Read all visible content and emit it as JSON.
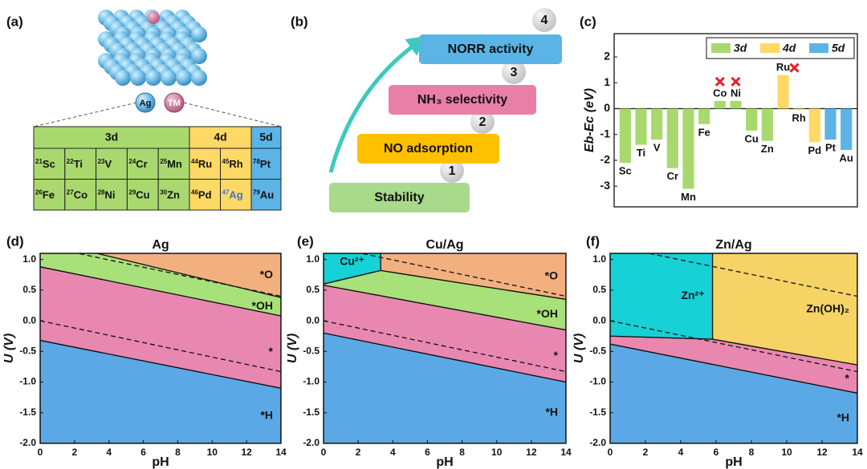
{
  "panel_labels": [
    "(a)",
    "(b)",
    "(c)",
    "(d)",
    "(e)",
    "(f)"
  ],
  "model": {
    "atoms": [
      "Ag",
      "TM"
    ]
  },
  "periodic_table": {
    "groups": [
      "3d",
      "4d",
      "5d"
    ],
    "rows": [
      [
        {
          "z": "21",
          "el": "Sc"
        },
        {
          "z": "22",
          "el": "Ti"
        },
        {
          "z": "23",
          "el": "V"
        },
        {
          "z": "24",
          "el": "Cr"
        },
        {
          "z": "25",
          "el": "Mn"
        },
        {
          "z": "44",
          "el": "Ru"
        },
        {
          "z": "45",
          "el": "Rh"
        },
        {
          "z": "78",
          "el": "Pt"
        }
      ],
      [
        {
          "z": "26",
          "el": "Fe"
        },
        {
          "z": "27",
          "el": "Co"
        },
        {
          "z": "28",
          "el": "Ni"
        },
        {
          "z": "29",
          "el": "Cu"
        },
        {
          "z": "30",
          "el": "Zn"
        },
        {
          "z": "46",
          "el": "Pd"
        },
        {
          "z": "47",
          "el": "Ag"
        },
        {
          "z": "79",
          "el": "Au"
        }
      ]
    ]
  },
  "workflow": {
    "steps": [
      {
        "number": "1",
        "label": "Stability"
      },
      {
        "number": "2",
        "label": "NO adsorption"
      },
      {
        "number": "3",
        "label": "NH₃ selectivity"
      },
      {
        "number": "4",
        "label": "NORR activity"
      }
    ]
  },
  "chart_data": [
    {
      "type": "bar",
      "ylabel": "Eb-Ec (eV)",
      "categories": [
        "Sc",
        "Ti",
        "V",
        "Cr",
        "Mn",
        "Fe",
        "Co",
        "Ni",
        "Cu",
        "Zn",
        "Ru",
        "Rh",
        "Pd",
        "Pt",
        "Au"
      ],
      "series": [
        {
          "name": "3d",
          "color": "#a9d96e",
          "values": [
            -2.1,
            -1.4,
            -1.2,
            -2.3,
            -3.1,
            -0.6,
            0.3,
            0.3,
            -0.85,
            -1.25,
            null,
            null,
            null,
            null,
            null
          ]
        },
        {
          "name": "4d",
          "color": "#ffd966",
          "values": [
            null,
            null,
            null,
            null,
            null,
            null,
            null,
            null,
            null,
            null,
            1.3,
            -0.05,
            -1.3,
            null,
            null
          ]
        },
        {
          "name": "5d",
          "color": "#5cb3e6",
          "values": [
            null,
            null,
            null,
            null,
            null,
            null,
            null,
            null,
            null,
            null,
            null,
            null,
            null,
            -1.2,
            -1.6
          ]
        }
      ],
      "marked_categories": [
        "Co",
        "Ni",
        "Ru"
      ],
      "ylim": [
        -3.8,
        2.9
      ],
      "yticks": [
        -3,
        -2,
        -1,
        0,
        1,
        2
      ],
      "legend": "top-right"
    },
    {
      "type": "pourbaix",
      "title": "Ag",
      "xlabel": "pH",
      "ylabel": "U (V)",
      "xlim": [
        0,
        14
      ],
      "ylim": [
        -2.0,
        1.1
      ],
      "xticks": [
        0,
        2,
        4,
        6,
        8,
        10,
        12,
        14
      ],
      "yticks": [
        {
          "value": -2.0,
          "label": "-2.0"
        },
        -1.5,
        {
          "value": -1.0,
          "label": "-1.0"
        },
        -0.5,
        {
          "value": 0,
          "label": "0.0"
        },
        0.5,
        {
          "value": 1.0,
          "label": "1.0"
        }
      ],
      "regions": [
        {
          "name": "*H",
          "color": "#5aa9e6",
          "x": [
            0,
            14,
            14,
            0
          ],
          "y": [
            -2.0,
            -2.0,
            -1.1,
            -0.32
          ]
        },
        {
          "name": "*",
          "color": "#e888b0",
          "x": [
            0,
            14,
            14,
            0
          ],
          "y": [
            -0.32,
            -1.1,
            0.08,
            0.88
          ]
        },
        {
          "name": "*OH",
          "color": "#a8e07a",
          "x": [
            0,
            14,
            14,
            3.3,
            0
          ],
          "y": [
            0.88,
            0.08,
            0.38,
            1.1,
            1.1
          ]
        },
        {
          "name": "*O",
          "color": "#f3b07f",
          "x": [
            3.3,
            14,
            14
          ],
          "y": [
            1.1,
            0.38,
            1.1
          ]
        }
      ],
      "dashed": [
        {
          "x": [
            0,
            14
          ],
          "y": [
            0,
            -0.83
          ]
        },
        {
          "x": [
            0,
            14
          ],
          "y": [
            1.23,
            0.4
          ]
        }
      ]
    },
    {
      "type": "pourbaix",
      "title": "Cu/Ag",
      "xlabel": "pH",
      "ylabel": "U (V)",
      "xlim": [
        0,
        14
      ],
      "ylim": [
        -2.0,
        1.1
      ],
      "xticks": [
        0,
        2,
        4,
        6,
        8,
        10,
        12,
        14
      ],
      "yticks": [
        {
          "value": -2.0,
          "label": "-2.0"
        },
        -1.5,
        {
          "value": -1.0,
          "label": "-1.0"
        },
        -0.5,
        {
          "value": 0,
          "label": "0.0"
        },
        0.5,
        {
          "value": 1.0,
          "label": "1.0"
        }
      ],
      "regions": [
        {
          "name": "*H",
          "color": "#5aa9e6",
          "x": [
            0,
            14,
            14,
            0
          ],
          "y": [
            -2.0,
            -2.0,
            -1.0,
            -0.2
          ]
        },
        {
          "name": "*",
          "color": "#e888b0",
          "x": [
            0,
            14,
            14,
            0
          ],
          "y": [
            -0.2,
            -1.0,
            -0.15,
            0.58
          ]
        },
        {
          "name": "*OH",
          "color": "#a8e07a",
          "x": [
            0,
            14,
            14,
            3.3,
            0
          ],
          "y": [
            0.58,
            -0.15,
            0.35,
            0.82,
            0.6
          ]
        },
        {
          "name": "*O",
          "color": "#f3b07f",
          "x": [
            3.3,
            14,
            14,
            3.3
          ],
          "y": [
            0.82,
            0.35,
            1.1,
            1.1
          ]
        },
        {
          "name": "Cu²⁺",
          "color": "#16d1d6",
          "x": [
            0,
            3.3,
            3.3,
            0
          ],
          "y": [
            0.6,
            0.82,
            1.1,
            1.1
          ]
        }
      ],
      "dashed": [
        {
          "x": [
            0,
            14
          ],
          "y": [
            0,
            -0.83
          ]
        },
        {
          "x": [
            0,
            14
          ],
          "y": [
            1.23,
            0.4
          ]
        }
      ]
    },
    {
      "type": "pourbaix",
      "title": "Zn/Ag",
      "xlabel": "pH",
      "ylabel": "U (V)",
      "xlim": [
        0,
        14
      ],
      "ylim": [
        -2.0,
        1.1
      ],
      "xticks": [
        0,
        2,
        4,
        6,
        8,
        10,
        12,
        14
      ],
      "yticks": [
        {
          "value": -2.0,
          "label": "-2.0"
        },
        -1.5,
        {
          "value": -1.0,
          "label": "-1.0"
        },
        -0.5,
        {
          "value": 0,
          "label": "0.0"
        },
        0.5,
        {
          "value": 1.0,
          "label": "1.0"
        }
      ],
      "regions": [
        {
          "name": "*H",
          "color": "#5aa9e6",
          "x": [
            0,
            14,
            14,
            0
          ],
          "y": [
            -2.0,
            -2.0,
            -1.18,
            -0.38
          ]
        },
        {
          "name": "*",
          "color": "#e888b0",
          "x": [
            0,
            14,
            14,
            5.8,
            0
          ],
          "y": [
            -0.38,
            -1.18,
            -0.72,
            -0.3,
            -0.25
          ]
        },
        {
          "name": "Zn²⁺",
          "color": "#16d1d6",
          "x": [
            0,
            5.8,
            5.8,
            0
          ],
          "y": [
            -0.25,
            -0.3,
            1.1,
            1.1
          ]
        },
        {
          "name": "Zn(OH)₂",
          "color": "#f6d365",
          "x": [
            5.8,
            14,
            14,
            5.8
          ],
          "y": [
            -0.3,
            -0.72,
            1.1,
            1.1
          ]
        }
      ],
      "dashed": [
        {
          "x": [
            0,
            14
          ],
          "y": [
            0,
            -0.83
          ]
        },
        {
          "x": [
            0,
            14
          ],
          "y": [
            1.23,
            0.4
          ]
        }
      ]
    }
  ]
}
